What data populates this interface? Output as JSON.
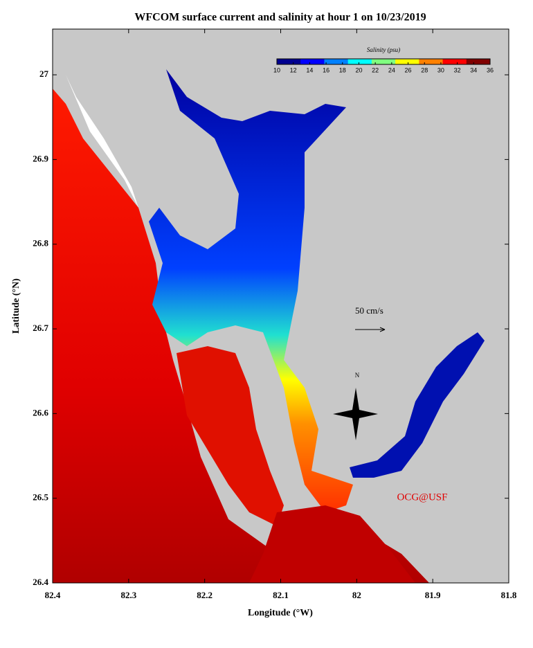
{
  "chart_data": {
    "type": "map",
    "title": "WFCOM surface current and salinity at hour 1 on 10/23/2019",
    "x_label": "Longitude (°W)",
    "y_label": "Latitude (°N)",
    "xlim": [
      82.4,
      81.8
    ],
    "xticks": [
      82.4,
      82.3,
      82.2,
      82.1,
      82.0,
      81.9,
      81.8
    ],
    "ylim": [
      26.4,
      27.054
    ],
    "yticks": [
      26.4,
      26.5,
      26.6,
      26.7,
      26.8,
      26.9,
      27.0
    ],
    "land_color": "#c8c8c8",
    "colorbar": {
      "label": "Salinity (psu)",
      "lim": [
        10,
        36
      ],
      "ticks": [
        10,
        12,
        14,
        16,
        18,
        20,
        22,
        24,
        26,
        28,
        30,
        32,
        34,
        36
      ],
      "colors": [
        "#00008f",
        "#0000ff",
        "#0080ff",
        "#00ffff",
        "#80ff80",
        "#ffff00",
        "#ff8000",
        "#ff0000",
        "#800000"
      ]
    },
    "scale_label": "50 cm/s",
    "north_label": "N",
    "credit": "OCG@USF"
  }
}
